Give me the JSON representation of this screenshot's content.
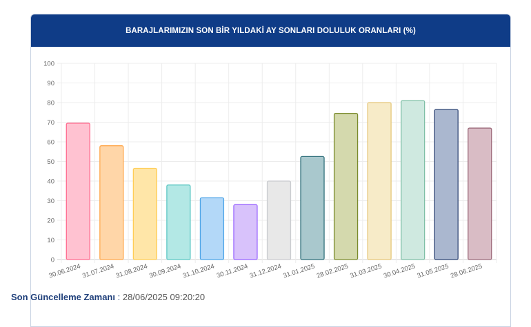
{
  "header": {
    "title": "BARAJLARIMIZIN SON BİR YILDAKİ AY SONLARI DOLULUK ORANLARI (%)"
  },
  "footer": {
    "label": "Son Güncelleme Zamanı",
    "separator": " : ",
    "value": "28/06/2025 09:20:20"
  },
  "chart_data": {
    "type": "bar",
    "title": "BARAJLARIMIZIN SON BİR YILDAKİ AY SONLARI DOLULUK ORANLARI (%)",
    "xlabel": "",
    "ylabel": "",
    "ylim": [
      0,
      100
    ],
    "yticks": [
      0,
      10,
      20,
      30,
      40,
      50,
      60,
      70,
      80,
      90,
      100
    ],
    "grid": true,
    "legend": "none",
    "categories": [
      "30.06.2024",
      "31.07.2024",
      "31.08.2024",
      "30.09.2024",
      "31.10.2024",
      "30.11.2024",
      "31.12.2024",
      "31.01.2025",
      "28.02.2025",
      "31.03.2025",
      "30.04.2025",
      "31.05.2025",
      "28.06.2025"
    ],
    "values": [
      69.5,
      58,
      46.5,
      38,
      31.5,
      28,
      40,
      52.5,
      74.5,
      80,
      81,
      76.5,
      67
    ],
    "fill_colors": [
      "#ffc2d1",
      "#ffd6a8",
      "#ffe6a8",
      "#b3e8e5",
      "#b3d8f8",
      "#d8c2fb",
      "#e8e8e8",
      "#a9c8cd",
      "#d4d9ad",
      "#f7ebc8",
      "#cfe9e0",
      "#aab7cf",
      "#d9bcc5"
    ],
    "border_colors": [
      "#ff6b8f",
      "#ffa84d",
      "#ffcd56",
      "#5cc7c3",
      "#4ba4e8",
      "#9966ff",
      "#c9cbcf",
      "#2f6f7a",
      "#7a8a2c",
      "#e5c77a",
      "#7fbfa6",
      "#2f4575",
      "#9c6a7a"
    ]
  }
}
